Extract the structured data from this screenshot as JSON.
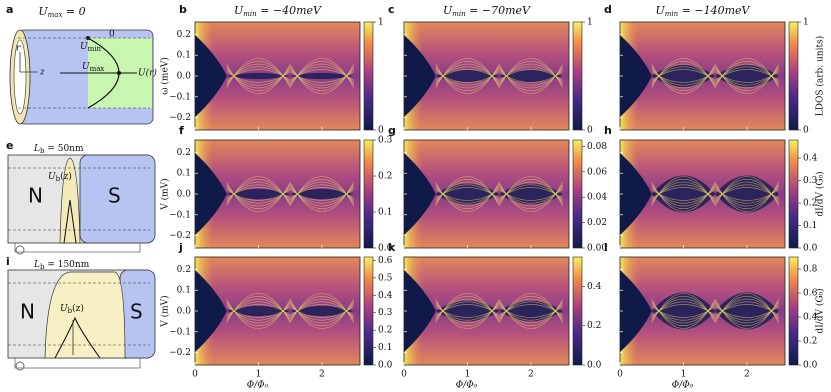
{
  "figure": {
    "axes": {
      "xlim": [
        0,
        2.6
      ],
      "ylim": [
        -0.26,
        0.26
      ],
      "xticks": [
        0,
        1,
        2
      ],
      "yticks": [
        {
          "value": 0.2,
          "label": "0.2"
        },
        {
          "value": 0.1,
          "label": "0.1"
        },
        {
          "value": 0,
          "label": "0.0"
        },
        {
          "value": -0.1,
          "label": "−0.1"
        },
        {
          "value": -0.2,
          "label": "−0.2"
        }
      ],
      "xlabel": "Φ/Φ₀"
    },
    "columns": [
      {
        "title": {
          "symbol": "U",
          "sub": "min",
          "rest": " = −40meV"
        }
      },
      {
        "title": {
          "symbol": "U",
          "sub": "min",
          "rest": " = −70meV"
        }
      },
      {
        "title": {
          "symbol": "U",
          "sub": "min",
          "rest": " = −140meV"
        }
      }
    ],
    "rows": [
      {
        "labels": [
          "b",
          "c",
          "d"
        ],
        "ylabel": "ω (meV)",
        "colorbar_label": "LDOS (arb. units)",
        "colorbars": [
          {
            "lim": [
              0,
              1
            ],
            "ticks": [
              0,
              1
            ]
          },
          {
            "lim": [
              0,
              1
            ],
            "ticks": [
              0,
              1
            ]
          },
          {
            "lim": [
              0,
              1
            ],
            "ticks": [
              0,
              1
            ]
          }
        ]
      },
      {
        "labels": [
          "f",
          "g",
          "h"
        ],
        "ylabel": "V (mV)",
        "colorbar_label": "dI/dV (G₀)",
        "colorbars": [
          {
            "lim": [
              0,
              0.3
            ],
            "ticks": [
              {
                "value": 0,
                "label": "0.0"
              },
              0.1,
              0.2,
              0.3
            ]
          },
          {
            "lim": [
              0,
              0.085
            ],
            "ticks": [
              {
                "value": 0,
                "label": "0.00"
              },
              0.02,
              0.04,
              0.06,
              0.08
            ]
          },
          {
            "lim": [
              0,
              0.48
            ],
            "ticks": [
              {
                "value": 0,
                "label": "0.0"
              },
              0.1,
              0.2,
              0.3,
              0.4
            ]
          }
        ]
      },
      {
        "labels": [
          "j",
          "k",
          "l"
        ],
        "ylabel": "V (mV)",
        "colorbar_label": "dI/dV (G₀)",
        "colorbars": [
          {
            "lim": [
              0,
              0.62
            ],
            "ticks": [
              {
                "value": 0,
                "label": "0.0"
              },
              0.1,
              0.2,
              0.3,
              0.4,
              0.5,
              0.6
            ]
          },
          {
            "lim": [
              0,
              0.55
            ],
            "ticks": [
              {
                "value": 0,
                "label": "0.0"
              },
              0.2,
              0.4
            ]
          },
          {
            "lim": [
              0,
              0.9
            ],
            "ticks": [
              {
                "value": 0,
                "label": "0.0"
              },
              0.2,
              0.4,
              0.6,
              0.8
            ]
          }
        ]
      }
    ],
    "schematics": {
      "a": {
        "label": "a",
        "title": {
          "symbol": "U",
          "sub": "max",
          "rest": " = 0"
        },
        "r": "r",
        "z": "z",
        "u_min": {
          "symbol": "U",
          "sub": "min"
        },
        "u_max": {
          "symbol": "U",
          "sub": "max"
        },
        "u_r": "U(r)",
        "zero": "0"
      },
      "e": {
        "label": "e",
        "barrier": {
          "symbol": "L",
          "sub": "b",
          "rest": " = 50nm"
        },
        "n": "N",
        "s": "S",
        "potential": {
          "symbol": "U",
          "sub": "b",
          "rest": "(z)"
        }
      },
      "i": {
        "label": "i",
        "barrier": {
          "symbol": "L",
          "sub": "b",
          "rest": " = 150nm"
        },
        "n": "N",
        "s": "S",
        "potential": {
          "symbol": "U",
          "sub": "b",
          "rest": "(z)"
        }
      }
    }
  }
}
